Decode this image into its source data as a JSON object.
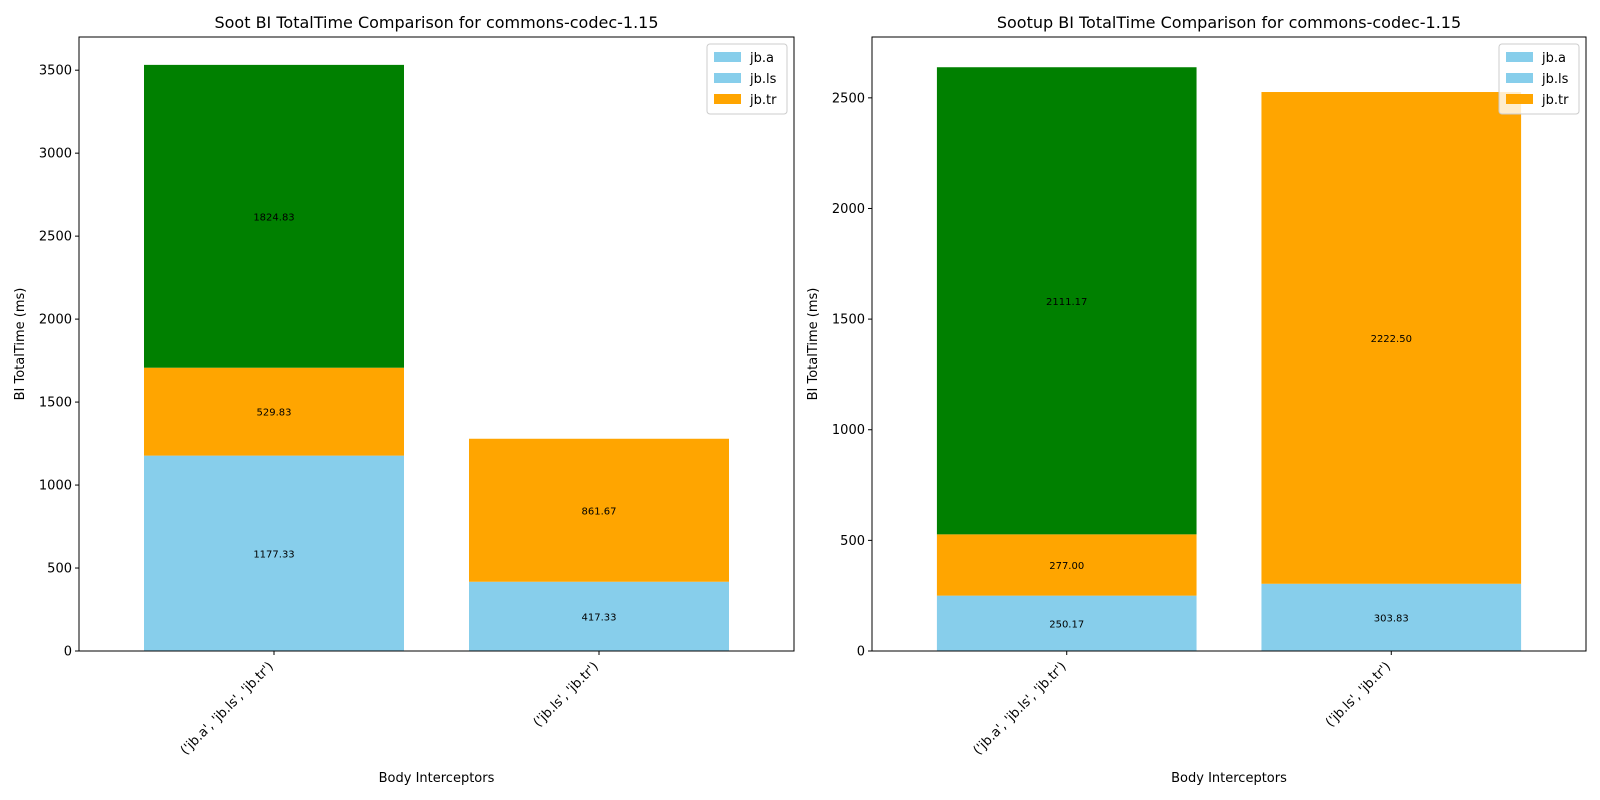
{
  "chart_data": [
    {
      "type": "bar",
      "stacked": true,
      "title": "Soot BI TotalTime Comparison for commons-codec-1.15",
      "xlabel": "Body Interceptors",
      "ylabel": "BI TotalTime (ms)",
      "ylim": [
        0,
        3700
      ],
      "yticks": [
        0,
        500,
        1000,
        1500,
        2000,
        2500,
        3000,
        3500
      ],
      "categories": [
        "('jb.a', 'jb.ls', 'jb.tr')",
        "('jb.ls', 'jb.tr')"
      ],
      "bars": [
        {
          "segments": [
            {
              "value": 1177.33,
              "label": "1177.33",
              "color": "#87CEEB"
            },
            {
              "value": 529.83,
              "label": "529.83",
              "color": "#FFA500"
            },
            {
              "value": 1824.83,
              "label": "1824.83",
              "color": "#008000"
            }
          ]
        },
        {
          "segments": [
            {
              "value": 417.33,
              "label": "417.33",
              "color": "#87CEEB"
            },
            {
              "value": 861.67,
              "label": "861.67",
              "color": "#FFA500"
            }
          ]
        }
      ],
      "legend": {
        "position": "top-right",
        "entries": [
          {
            "name": "jb.a",
            "color": "#87CEEB"
          },
          {
            "name": "jb.ls",
            "color": "#87CEEB"
          },
          {
            "name": "jb.tr",
            "color": "#FFA500"
          }
        ]
      }
    },
    {
      "type": "bar",
      "stacked": true,
      "title": "Sootup BI TotalTime Comparison for commons-codec-1.15",
      "xlabel": "Body Interceptors",
      "ylabel": "BI TotalTime (ms)",
      "ylim": [
        0,
        2775
      ],
      "yticks": [
        0,
        500,
        1000,
        1500,
        2000,
        2500
      ],
      "categories": [
        "('jb.a', 'jb.ls', 'jb.tr')",
        "('jb.ls', 'jb.tr')"
      ],
      "bars": [
        {
          "segments": [
            {
              "value": 250.17,
              "label": "250.17",
              "color": "#87CEEB"
            },
            {
              "value": 277.0,
              "label": "277.00",
              "color": "#FFA500"
            },
            {
              "value": 2111.17,
              "label": "2111.17",
              "color": "#008000"
            }
          ]
        },
        {
          "segments": [
            {
              "value": 303.83,
              "label": "303.83",
              "color": "#87CEEB"
            },
            {
              "value": 2222.5,
              "label": "2222.50",
              "color": "#FFA500"
            }
          ]
        }
      ],
      "legend": {
        "position": "top-right",
        "entries": [
          {
            "name": "jb.a",
            "color": "#87CEEB"
          },
          {
            "name": "jb.ls",
            "color": "#87CEEB"
          },
          {
            "name": "jb.tr",
            "color": "#FFA500"
          }
        ]
      }
    }
  ]
}
